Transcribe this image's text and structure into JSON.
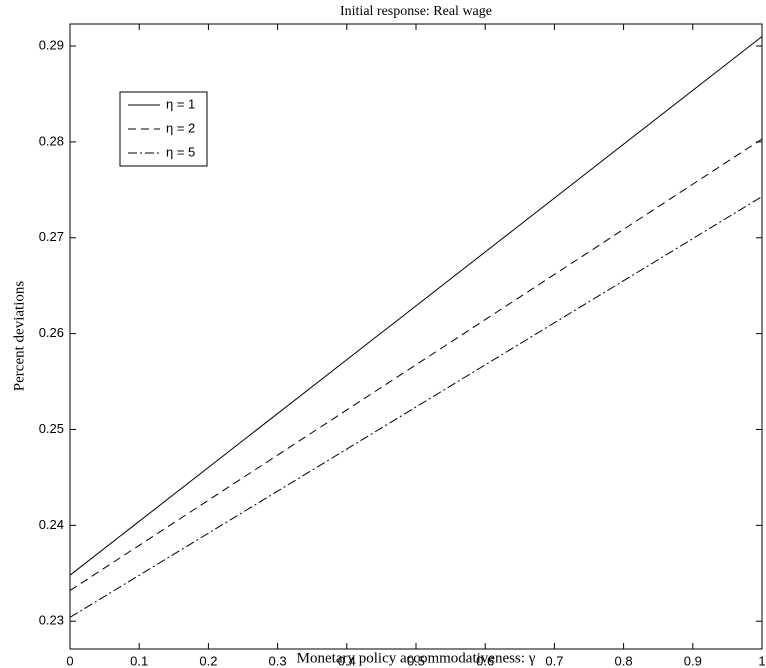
{
  "chart_data": {
    "type": "line",
    "title": "Initial response: Real wage",
    "xlabel": "Monetary policy accommodativeness: γ",
    "ylabel": "Percent deviations",
    "x": [
      0,
      1
    ],
    "series": [
      {
        "name": "η = 1",
        "color": "#000000",
        "dash": "solid",
        "values": [
          0.2348,
          0.291
        ]
      },
      {
        "name": "η = 2",
        "color": "#000000",
        "dash": "dashed",
        "values": [
          0.2332,
          0.2803
        ]
      },
      {
        "name": "η = 5",
        "color": "#000000",
        "dash": "dashdot",
        "values": [
          0.2304,
          0.2743
        ]
      }
    ],
    "xlim": [
      0,
      1
    ],
    "xticks": [
      0,
      0.1,
      0.2,
      0.3,
      0.4,
      0.5,
      0.6,
      0.7,
      0.8,
      0.9,
      1
    ],
    "ylim": [
      0.2271,
      0.2923
    ],
    "yticks": [
      0.23,
      0.24,
      0.25,
      0.26,
      0.27,
      0.28,
      0.29
    ],
    "grid": false,
    "legend": "upper left"
  }
}
